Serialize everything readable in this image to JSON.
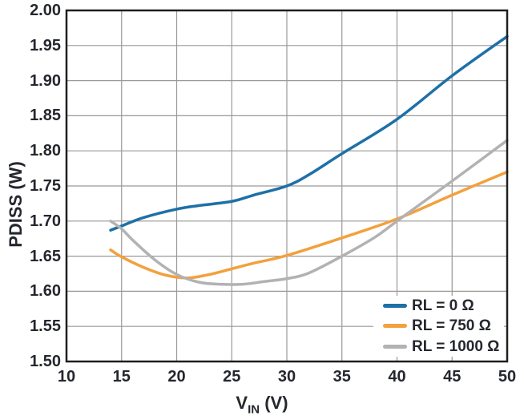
{
  "figure": {
    "background": "#ffffff",
    "text_color": "#25272e",
    "grid_color": "#999999",
    "frame_color": "#1f1f1f"
  },
  "chart_data": {
    "type": "line",
    "title": "",
    "xlabel": {
      "base": "V",
      "sub": "IN",
      "rest": " (V)"
    },
    "ylabel": "PDISS (W)",
    "xlim": [
      10,
      50
    ],
    "ylim": [
      1.5,
      2.0
    ],
    "xticks": [
      "10",
      "15",
      "20",
      "25",
      "30",
      "35",
      "40",
      "45",
      "50"
    ],
    "yticks": [
      "2.00",
      "1.95",
      "1.90",
      "1.85",
      "1.80",
      "1.75",
      "1.70",
      "1.65",
      "1.60",
      "1.55",
      "1.50"
    ],
    "grid": true,
    "legend_position": "lower-right",
    "series": [
      {
        "name": "RL = 0 Ω",
        "color": "#1e70a6",
        "x": [
          14,
          15,
          17,
          20,
          22,
          25,
          27,
          30,
          32,
          35,
          40,
          45,
          50
        ],
        "y": [
          1.687,
          1.693,
          1.705,
          1.717,
          1.722,
          1.728,
          1.737,
          1.75,
          1.766,
          1.796,
          1.845,
          1.907,
          1.963
        ]
      },
      {
        "name": "RL = 750 Ω",
        "color": "#f2a13e",
        "x": [
          14,
          15,
          17,
          19,
          21,
          23,
          25,
          27,
          30,
          35,
          40,
          45,
          50
        ],
        "y": [
          1.659,
          1.649,
          1.634,
          1.623,
          1.619,
          1.624,
          1.632,
          1.64,
          1.651,
          1.676,
          1.703,
          1.737,
          1.77
        ]
      },
      {
        "name": "RL = 1000 Ω",
        "color": "#b2b2b2",
        "x": [
          14,
          15,
          16,
          18,
          20,
          22,
          24,
          26,
          28,
          30,
          32,
          35,
          38,
          40,
          45,
          50
        ],
        "y": [
          1.7,
          1.689,
          1.673,
          1.645,
          1.624,
          1.613,
          1.61,
          1.61,
          1.614,
          1.618,
          1.626,
          1.65,
          1.677,
          1.7,
          1.757,
          1.815
        ]
      }
    ]
  }
}
